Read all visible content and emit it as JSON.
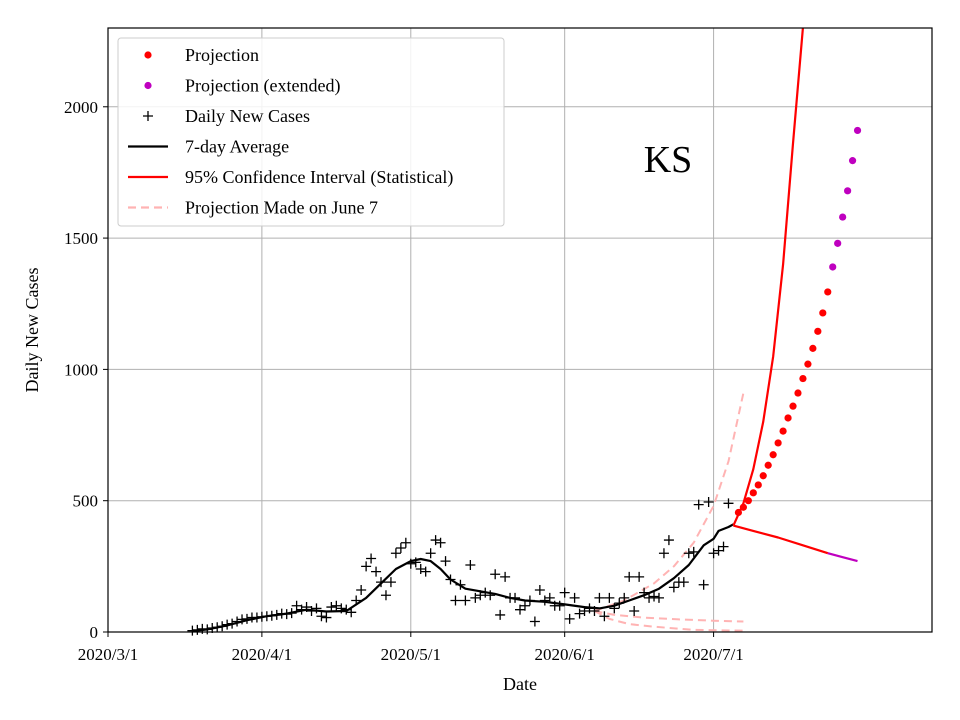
{
  "chart_data": {
    "type": "line",
    "state_label": "KS",
    "xlabel": "Date",
    "ylabel": "Daily New Cases",
    "xlim_day": [
      0,
      166
    ],
    "ylim": [
      0,
      2300
    ],
    "grid": true,
    "legend_position": "top-left",
    "x_ticks": [
      {
        "day": 0,
        "label": "2020/3/1"
      },
      {
        "day": 31,
        "label": "2020/4/1"
      },
      {
        "day": 61,
        "label": "2020/5/1"
      },
      {
        "day": 92,
        "label": "2020/6/1"
      },
      {
        "day": 122,
        "label": "2020/7/1"
      }
    ],
    "y_ticks": [
      0,
      500,
      1000,
      1500,
      2000
    ],
    "legend": [
      {
        "label": "Projection",
        "kind": "dot",
        "color": "#ff0000"
      },
      {
        "label": "Projection (extended)",
        "kind": "dot",
        "color": "#bf00bf"
      },
      {
        "label": "Daily New Cases",
        "kind": "plus",
        "color": "#000000"
      },
      {
        "label": "7-day Average",
        "kind": "line",
        "color": "#000000"
      },
      {
        "label": "95% Confidence Interval (Statistical)",
        "kind": "line",
        "color": "#ff0000"
      },
      {
        "label": "Projection Made on June 7",
        "kind": "dash",
        "color": "#ffb3b3"
      }
    ],
    "series": [
      {
        "name": "Daily New Cases",
        "style": "plus",
        "color": "#000000",
        "points": [
          [
            17,
            5
          ],
          [
            18,
            8
          ],
          [
            19,
            12
          ],
          [
            20,
            10
          ],
          [
            21,
            15
          ],
          [
            22,
            18
          ],
          [
            23,
            22
          ],
          [
            24,
            28
          ],
          [
            25,
            32
          ],
          [
            26,
            40
          ],
          [
            27,
            48
          ],
          [
            28,
            50
          ],
          [
            29,
            55
          ],
          [
            30,
            55
          ],
          [
            31,
            58
          ],
          [
            32,
            60
          ],
          [
            33,
            62
          ],
          [
            34,
            65
          ],
          [
            35,
            70
          ],
          [
            36,
            68
          ],
          [
            37,
            72
          ],
          [
            38,
            100
          ],
          [
            39,
            85
          ],
          [
            40,
            95
          ],
          [
            41,
            80
          ],
          [
            42,
            90
          ],
          [
            43,
            60
          ],
          [
            44,
            55
          ],
          [
            45,
            95
          ],
          [
            46,
            100
          ],
          [
            47,
            90
          ],
          [
            48,
            85
          ],
          [
            49,
            75
          ],
          [
            50,
            120
          ],
          [
            51,
            160
          ],
          [
            52,
            250
          ],
          [
            53,
            280
          ],
          [
            54,
            230
          ],
          [
            55,
            190
          ],
          [
            56,
            140
          ],
          [
            57,
            190
          ],
          [
            58,
            300
          ],
          [
            59,
            320
          ],
          [
            60,
            340
          ],
          [
            61,
            260
          ],
          [
            62,
            265
          ],
          [
            63,
            240
          ],
          [
            64,
            230
          ],
          [
            65,
            300
          ],
          [
            66,
            350
          ],
          [
            67,
            340
          ],
          [
            68,
            270
          ],
          [
            69,
            200
          ],
          [
            70,
            120
          ],
          [
            71,
            180
          ],
          [
            72,
            120
          ],
          [
            73,
            255
          ],
          [
            74,
            130
          ],
          [
            75,
            140
          ],
          [
            76,
            150
          ],
          [
            77,
            140
          ],
          [
            78,
            220
          ],
          [
            79,
            65
          ],
          [
            80,
            210
          ],
          [
            81,
            130
          ],
          [
            82,
            130
          ],
          [
            83,
            85
          ],
          [
            84,
            100
          ],
          [
            85,
            120
          ],
          [
            86,
            40
          ],
          [
            87,
            160
          ],
          [
            88,
            120
          ],
          [
            89,
            130
          ],
          [
            90,
            100
          ],
          [
            91,
            100
          ],
          [
            92,
            150
          ],
          [
            93,
            50
          ],
          [
            94,
            130
          ],
          [
            95,
            70
          ],
          [
            96,
            80
          ],
          [
            97,
            90
          ],
          [
            98,
            80
          ],
          [
            99,
            130
          ],
          [
            100,
            60
          ],
          [
            101,
            130
          ],
          [
            102,
            90
          ],
          [
            103,
            110
          ],
          [
            104,
            130
          ],
          [
            105,
            210
          ],
          [
            106,
            80
          ],
          [
            107,
            210
          ],
          [
            108,
            150
          ],
          [
            109,
            130
          ],
          [
            110,
            135
          ],
          [
            111,
            130
          ],
          [
            112,
            300
          ],
          [
            113,
            350
          ],
          [
            114,
            170
          ],
          [
            115,
            190
          ],
          [
            116,
            190
          ],
          [
            117,
            300
          ],
          [
            118,
            305
          ],
          [
            119,
            485
          ],
          [
            120,
            180
          ],
          [
            121,
            495
          ],
          [
            122,
            300
          ],
          [
            123,
            310
          ],
          [
            124,
            325
          ],
          [
            125,
            490
          ]
        ]
      },
      {
        "name": "7-day Average",
        "style": "line",
        "color": "#000000",
        "points": [
          [
            17,
            3
          ],
          [
            20,
            10
          ],
          [
            24,
            25
          ],
          [
            28,
            45
          ],
          [
            32,
            60
          ],
          [
            36,
            70
          ],
          [
            40,
            85
          ],
          [
            44,
            78
          ],
          [
            48,
            80
          ],
          [
            52,
            130
          ],
          [
            55,
            185
          ],
          [
            58,
            240
          ],
          [
            61,
            270
          ],
          [
            63,
            278
          ],
          [
            65,
            270
          ],
          [
            67,
            240
          ],
          [
            69,
            200
          ],
          [
            72,
            165
          ],
          [
            75,
            155
          ],
          [
            78,
            145
          ],
          [
            81,
            130
          ],
          [
            84,
            120
          ],
          [
            88,
            115
          ],
          [
            92,
            105
          ],
          [
            96,
            95
          ],
          [
            99,
            90
          ],
          [
            102,
            100
          ],
          [
            105,
            120
          ],
          [
            108,
            140
          ],
          [
            111,
            165
          ],
          [
            114,
            205
          ],
          [
            117,
            255
          ],
          [
            120,
            330
          ],
          [
            122,
            355
          ],
          [
            123,
            385
          ],
          [
            125,
            400
          ],
          [
            126,
            410
          ]
        ]
      },
      {
        "name": "Projection",
        "style": "dot",
        "color": "#ff0000",
        "points": [
          [
            127,
            455
          ],
          [
            128,
            475
          ],
          [
            129,
            500
          ],
          [
            130,
            530
          ],
          [
            131,
            560
          ],
          [
            132,
            595
          ],
          [
            133,
            635
          ],
          [
            134,
            675
          ],
          [
            135,
            720
          ],
          [
            136,
            765
          ],
          [
            137,
            815
          ],
          [
            138,
            860
          ],
          [
            139,
            910
          ],
          [
            140,
            965
          ],
          [
            141,
            1020
          ],
          [
            142,
            1080
          ],
          [
            143,
            1145
          ],
          [
            144,
            1215
          ],
          [
            145,
            1295
          ]
        ]
      },
      {
        "name": "Projection (extended)",
        "style": "dot",
        "color": "#bf00bf",
        "points": [
          [
            146,
            1390
          ],
          [
            147,
            1480
          ],
          [
            148,
            1580
          ],
          [
            149,
            1680
          ],
          [
            150,
            1795
          ],
          [
            151,
            1910
          ]
        ]
      },
      {
        "name": "95% Confidence Interval upper",
        "style": "line",
        "color": "#ff0000",
        "points": [
          [
            126,
            405
          ],
          [
            128,
            490
          ],
          [
            130,
            620
          ],
          [
            132,
            800
          ],
          [
            134,
            1050
          ],
          [
            136,
            1400
          ],
          [
            138,
            1860
          ],
          [
            140,
            2300
          ]
        ]
      },
      {
        "name": "95% Confidence Interval lower",
        "style": "line",
        "color": "#ff0000",
        "points": [
          [
            126,
            405
          ],
          [
            130,
            385
          ],
          [
            135,
            360
          ],
          [
            140,
            330
          ],
          [
            145,
            300
          ]
        ]
      },
      {
        "name": "Confidence Interval lower (extended)",
        "style": "line",
        "color": "#bf00bf",
        "points": [
          [
            145,
            300
          ],
          [
            148,
            285
          ],
          [
            151,
            270
          ]
        ]
      },
      {
        "name": "Projection Made on June 7 upper",
        "style": "dash",
        "color": "#ffb3b3",
        "points": [
          [
            98,
            80
          ],
          [
            104,
            120
          ],
          [
            110,
            185
          ],
          [
            114,
            250
          ],
          [
            118,
            340
          ],
          [
            122,
            480
          ],
          [
            125,
            650
          ],
          [
            128,
            910
          ]
        ]
      },
      {
        "name": "Projection Made on June 7 middle",
        "style": "dash",
        "color": "#ffb3b3",
        "points": [
          [
            98,
            80
          ],
          [
            102,
            65
          ],
          [
            108,
            55
          ],
          [
            115,
            48
          ],
          [
            122,
            43
          ],
          [
            128,
            40
          ]
        ]
      },
      {
        "name": "Projection Made on June 7 lower",
        "style": "dash",
        "color": "#ffb3b3",
        "points": [
          [
            98,
            80
          ],
          [
            101,
            50
          ],
          [
            105,
            30
          ],
          [
            110,
            20
          ],
          [
            118,
            8
          ],
          [
            128,
            5
          ]
        ]
      }
    ]
  }
}
